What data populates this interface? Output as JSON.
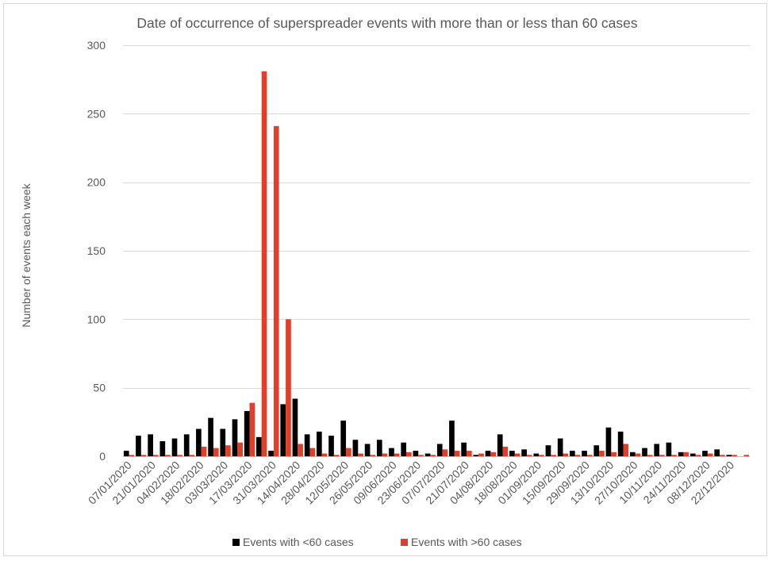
{
  "chart_data": {
    "type": "bar",
    "title": "Date of occurrence of superspreader events with more than or less than 60 cases",
    "xlabel": "",
    "ylabel": "Number of events each week",
    "ylim": [
      0,
      300
    ],
    "yticks": [
      0,
      50,
      100,
      150,
      200,
      250,
      300
    ],
    "grid": true,
    "legend": "bottom",
    "tick_labels": [
      "07/01/2020",
      "21/01/2020",
      "04/02/2020",
      "18/02/2020",
      "03/03/2020",
      "17/03/2020",
      "31/03/2020",
      "14/04/2020",
      "28/04/2020",
      "12/05/2020",
      "26/05/2020",
      "09/06/2020",
      "23/06/2020",
      "07/07/2020",
      "21/07/2020",
      "04/08/2020",
      "18/08/2020",
      "01/09/2020",
      "15/09/2020",
      "29/09/2020",
      "13/10/2020",
      "27/10/2020",
      "10/11/2020",
      "24/11/2020",
      "08/12/2020",
      "22/12/2020"
    ],
    "categories": [
      "07/01/2020",
      "14/01/2020",
      "21/01/2020",
      "28/01/2020",
      "04/02/2020",
      "11/02/2020",
      "18/02/2020",
      "25/02/2020",
      "03/03/2020",
      "10/03/2020",
      "17/03/2020",
      "24/03/2020",
      "31/03/2020",
      "07/04/2020",
      "14/04/2020",
      "21/04/2020",
      "28/04/2020",
      "05/05/2020",
      "12/05/2020",
      "19/05/2020",
      "26/05/2020",
      "02/06/2020",
      "09/06/2020",
      "16/06/2020",
      "23/06/2020",
      "30/06/2020",
      "07/07/2020",
      "14/07/2020",
      "21/07/2020",
      "28/07/2020",
      "04/08/2020",
      "11/08/2020",
      "18/08/2020",
      "25/08/2020",
      "01/09/2020",
      "08/09/2020",
      "15/09/2020",
      "22/09/2020",
      "29/09/2020",
      "06/10/2020",
      "13/10/2020",
      "20/10/2020",
      "27/10/2020",
      "03/11/2020",
      "10/11/2020",
      "17/11/2020",
      "24/11/2020",
      "01/12/2020",
      "08/12/2020",
      "15/12/2020",
      "22/12/2020",
      "29/12/2020"
    ],
    "series": [
      {
        "name": "Events with <60 cases",
        "color": "#000000",
        "values": [
          4,
          15,
          16,
          11,
          13,
          16,
          20,
          28,
          20,
          27,
          33,
          14,
          4,
          38,
          42,
          16,
          18,
          15,
          26,
          12,
          9,
          12,
          6,
          10,
          4,
          2,
          9,
          26,
          10,
          1,
          4,
          16,
          4,
          5,
          2,
          8,
          13,
          4,
          4,
          8,
          21,
          18,
          3,
          6,
          9,
          10,
          3,
          2,
          4,
          5,
          1,
          0
        ]
      },
      {
        "name": "Events with >60 cases",
        "color": "#e0402a",
        "values": [
          1,
          1,
          1,
          1,
          1,
          1,
          7,
          6,
          8,
          10,
          39,
          281,
          241,
          100,
          9,
          6,
          2,
          1,
          6,
          2,
          1,
          2,
          2,
          3,
          1,
          1,
          5,
          4,
          4,
          2,
          3,
          7,
          2,
          1,
          1,
          1,
          2,
          1,
          1,
          4,
          3,
          9,
          2,
          1,
          1,
          1,
          3,
          1,
          2,
          1,
          1,
          1
        ]
      }
    ]
  }
}
